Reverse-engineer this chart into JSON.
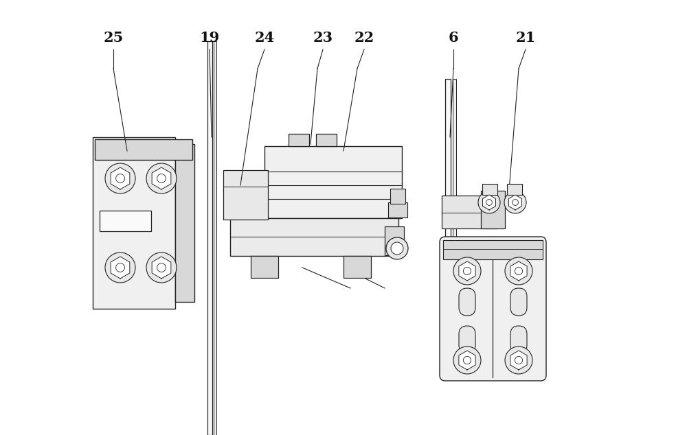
{
  "bg_color": "#ffffff",
  "line_color": "#222222",
  "figsize": [
    10.0,
    6.34
  ],
  "dpi": 100,
  "fill_light": "#f0f0f0",
  "fill_mid": "#d8d8d8",
  "fill_dark": "#b8b8b8"
}
